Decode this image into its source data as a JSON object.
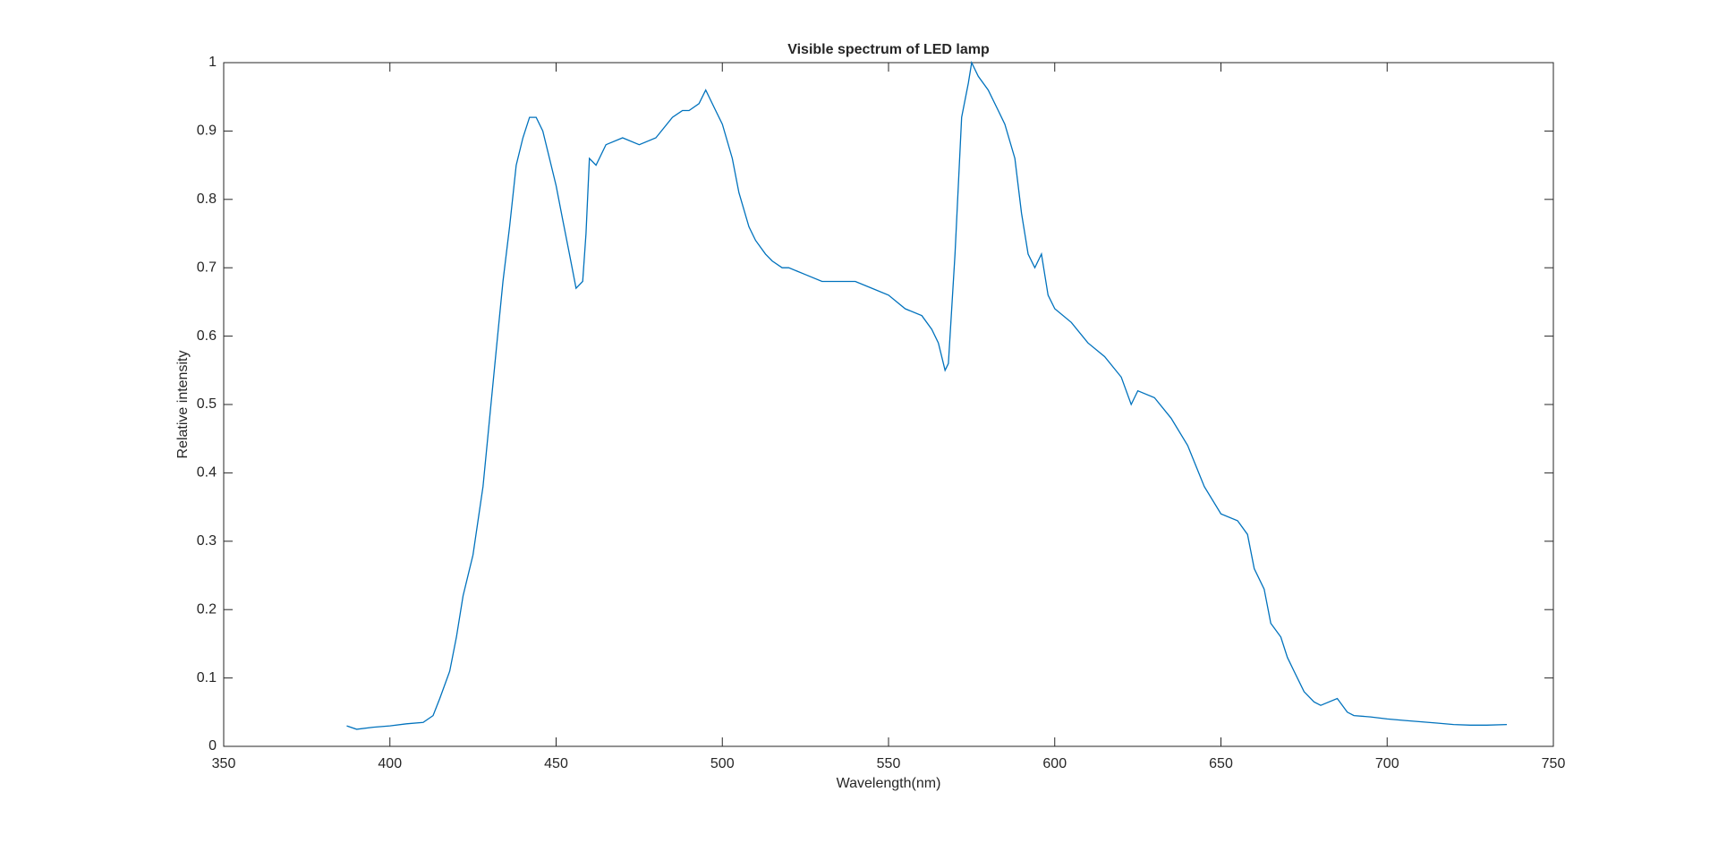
{
  "chart_data": {
    "type": "line",
    "title": "Visible spectrum of LED lamp",
    "xlabel": "Wavelength(nm)",
    "ylabel": "Relative intensity",
    "x": [
      387,
      390,
      395,
      400,
      405,
      410,
      413,
      415,
      418,
      420,
      422,
      425,
      428,
      430,
      432,
      434,
      436,
      438,
      440,
      442,
      444,
      446,
      448,
      450,
      452,
      454,
      456,
      458,
      459,
      460,
      462,
      465,
      470,
      475,
      480,
      485,
      488,
      490,
      493,
      495,
      498,
      500,
      503,
      505,
      508,
      510,
      513,
      515,
      518,
      520,
      525,
      530,
      535,
      540,
      545,
      550,
      555,
      560,
      563,
      565,
      567,
      568,
      570,
      572,
      574,
      575,
      577,
      580,
      583,
      585,
      588,
      590,
      592,
      594,
      596,
      598,
      600,
      605,
      610,
      615,
      620,
      623,
      625,
      630,
      635,
      640,
      645,
      650,
      655,
      658,
      660,
      663,
      665,
      668,
      670,
      672,
      675,
      678,
      680,
      685,
      688,
      690,
      695,
      700,
      705,
      710,
      715,
      720,
      725,
      730,
      736
    ],
    "values": [
      0.03,
      0.025,
      0.028,
      0.03,
      0.033,
      0.035,
      0.045,
      0.07,
      0.11,
      0.16,
      0.22,
      0.28,
      0.38,
      0.48,
      0.58,
      0.68,
      0.76,
      0.85,
      0.89,
      0.92,
      0.92,
      0.9,
      0.86,
      0.82,
      0.77,
      0.72,
      0.67,
      0.68,
      0.75,
      0.86,
      0.85,
      0.88,
      0.89,
      0.88,
      0.89,
      0.92,
      0.93,
      0.93,
      0.94,
      0.96,
      0.93,
      0.91,
      0.86,
      0.81,
      0.76,
      0.74,
      0.72,
      0.71,
      0.7,
      0.7,
      0.69,
      0.68,
      0.68,
      0.68,
      0.67,
      0.66,
      0.64,
      0.63,
      0.61,
      0.59,
      0.55,
      0.56,
      0.72,
      0.92,
      0.97,
      1.0,
      0.98,
      0.96,
      0.93,
      0.91,
      0.86,
      0.78,
      0.72,
      0.7,
      0.72,
      0.66,
      0.64,
      0.62,
      0.59,
      0.57,
      0.54,
      0.5,
      0.52,
      0.51,
      0.48,
      0.44,
      0.38,
      0.34,
      0.33,
      0.31,
      0.26,
      0.23,
      0.18,
      0.16,
      0.13,
      0.11,
      0.08,
      0.065,
      0.06,
      0.07,
      0.05,
      0.045,
      0.043,
      0.04,
      0.038,
      0.036,
      0.034,
      0.032,
      0.031,
      0.031,
      0.032
    ],
    "color": "#0072bd",
    "xlim": [
      350,
      750
    ],
    "xticks": [
      350,
      400,
      450,
      500,
      550,
      600,
      650,
      700,
      750
    ],
    "ylim": [
      0,
      1
    ],
    "yticks": [
      0,
      0.1,
      0.2,
      0.3,
      0.4,
      0.5,
      0.6,
      0.7,
      0.8,
      0.9,
      1
    ],
    "grid": false
  }
}
